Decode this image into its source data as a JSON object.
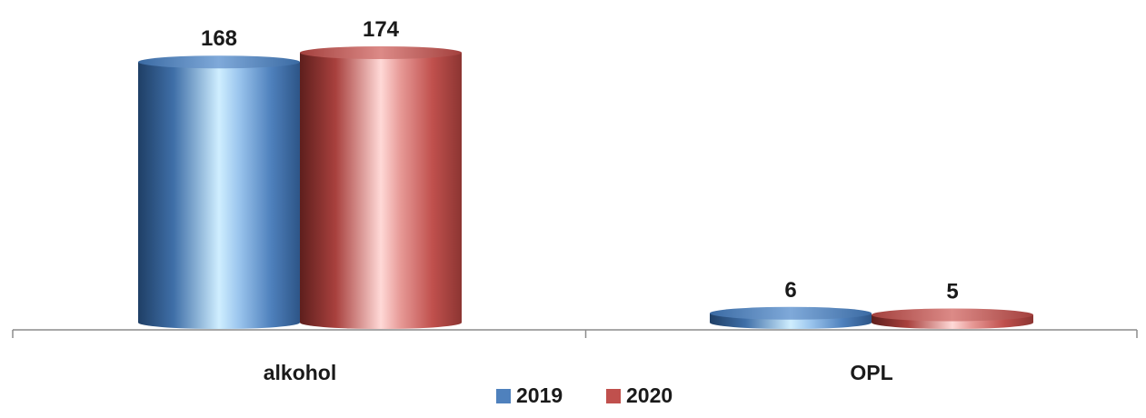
{
  "chart_data": {
    "type": "bar",
    "categories": [
      "alkohol",
      "OPL"
    ],
    "series": [
      {
        "name": "2019",
        "values": [
          168,
          6
        ],
        "color": "#4f81bd"
      },
      {
        "name": "2020",
        "values": [
          174,
          5
        ],
        "color": "#c0504d"
      }
    ],
    "title": "",
    "xlabel": "",
    "ylabel": "",
    "ylim": [
      0,
      174
    ],
    "grid": false,
    "legend": "bottom",
    "style": "3d-cylinder"
  }
}
